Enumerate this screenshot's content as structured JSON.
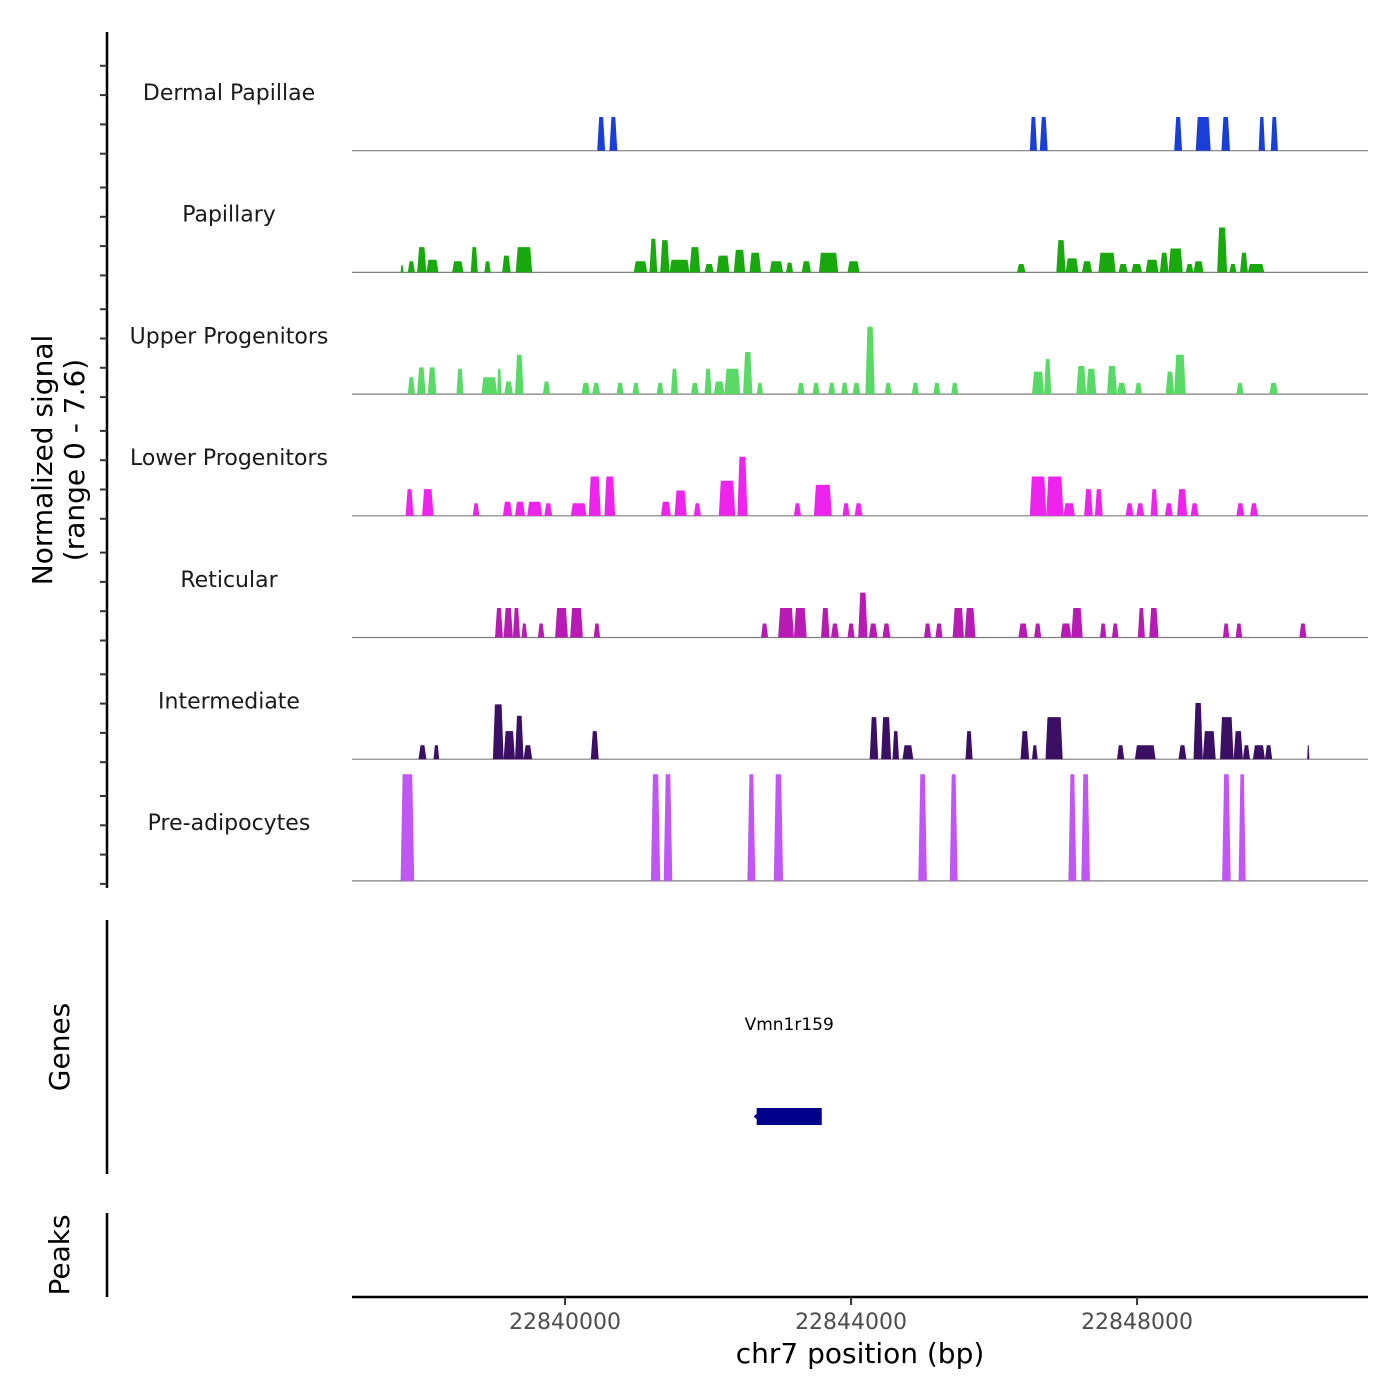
{
  "chart_data": {
    "type": "area",
    "title": "",
    "ylabel": "Normalized signal (range 0 - 7.6)",
    "ylabel_lines": [
      "Normalized signal",
      "(range 0 - 7.6)"
    ],
    "xlabel": "chr7 position (bp)",
    "chromosome": "chr7",
    "xlim": [
      22837020,
      22851230
    ],
    "ylim": [
      0,
      7.6
    ],
    "x_ticks": [
      22840000,
      22844000,
      22848000
    ],
    "x_tick_labels": [
      "22840000",
      "22844000",
      "22848000"
    ],
    "grid": false,
    "legend": "none",
    "tracks": [
      {
        "name": "Dermal Papillae",
        "color": "#1a3fd9",
        "regions": [
          [
            22840450,
            22840560,
            2.4
          ],
          [
            22840620,
            22840730,
            2.4
          ],
          [
            22846500,
            22846600,
            2.4
          ],
          [
            22846640,
            22846750,
            2.4
          ],
          [
            22848520,
            22848630,
            2.4
          ],
          [
            22848820,
            22849030,
            2.4
          ],
          [
            22849180,
            22849300,
            2.4
          ],
          [
            22849700,
            22849790,
            2.4
          ],
          [
            22849870,
            22849970,
            2.4
          ]
        ]
      },
      {
        "name": "Papillary",
        "color": "#1aa80f",
        "regions": [
          [
            22837700,
            22837740,
            0.5
          ],
          [
            22837800,
            22837900,
            0.8
          ],
          [
            22837930,
            22838060,
            1.8
          ],
          [
            22838060,
            22838230,
            0.9
          ],
          [
            22838420,
            22838580,
            0.8
          ],
          [
            22838680,
            22838780,
            1.8
          ],
          [
            22838870,
            22838960,
            0.8
          ],
          [
            22839120,
            22839240,
            1.2
          ],
          [
            22839310,
            22839540,
            1.8
          ],
          [
            22840960,
            22841150,
            0.8
          ],
          [
            22841180,
            22841290,
            2.4
          ],
          [
            22841330,
            22841460,
            2.3
          ],
          [
            22841460,
            22841740,
            0.9
          ],
          [
            22841740,
            22841890,
            1.8
          ],
          [
            22841950,
            22842080,
            0.6
          ],
          [
            22842120,
            22842300,
            1.2
          ],
          [
            22842360,
            22842520,
            1.6
          ],
          [
            22842580,
            22842740,
            1.4
          ],
          [
            22842860,
            22843050,
            0.8
          ],
          [
            22843090,
            22843190,
            0.7
          ],
          [
            22843310,
            22843440,
            0.8
          ],
          [
            22843550,
            22843820,
            1.4
          ],
          [
            22843950,
            22844120,
            0.8
          ],
          [
            22846320,
            22846440,
            0.6
          ],
          [
            22846870,
            22847000,
            2.3
          ],
          [
            22847000,
            22847180,
            1.0
          ],
          [
            22847230,
            22847370,
            0.8
          ],
          [
            22847460,
            22847700,
            1.4
          ],
          [
            22847740,
            22847870,
            0.6
          ],
          [
            22847920,
            22848070,
            0.6
          ],
          [
            22848120,
            22848300,
            0.9
          ],
          [
            22848320,
            22848440,
            1.4
          ],
          [
            22848440,
            22848640,
            1.7
          ],
          [
            22848680,
            22848790,
            0.6
          ],
          [
            22848790,
            22848930,
            0.8
          ],
          [
            22849120,
            22849260,
            3.2
          ],
          [
            22849290,
            22849390,
            0.6
          ],
          [
            22849440,
            22849550,
            1.4
          ],
          [
            22849550,
            22849780,
            0.6
          ]
        ]
      },
      {
        "name": "Upper Progenitors",
        "color": "#59d966",
        "regions": [
          [
            22837800,
            22837900,
            1.2
          ],
          [
            22837930,
            22838050,
            1.9
          ],
          [
            22838080,
            22838200,
            1.9
          ],
          [
            22838480,
            22838580,
            1.8
          ],
          [
            22838830,
            22839050,
            1.2
          ],
          [
            22839050,
            22839110,
            1.8
          ],
          [
            22839150,
            22839270,
            0.9
          ],
          [
            22839300,
            22839420,
            2.8
          ],
          [
            22839690,
            22839790,
            0.9
          ],
          [
            22840230,
            22840350,
            0.8
          ],
          [
            22840380,
            22840490,
            0.8
          ],
          [
            22840720,
            22840820,
            0.8
          ],
          [
            22840940,
            22841040,
            0.8
          ],
          [
            22841280,
            22841380,
            0.8
          ],
          [
            22841480,
            22841580,
            1.8
          ],
          [
            22841760,
            22841870,
            0.8
          ],
          [
            22841950,
            22842050,
            1.8
          ],
          [
            22842080,
            22842230,
            0.9
          ],
          [
            22842230,
            22842450,
            1.8
          ],
          [
            22842490,
            22842620,
            3.0
          ],
          [
            22842680,
            22842770,
            0.8
          ],
          [
            22843250,
            22843350,
            0.8
          ],
          [
            22843460,
            22843560,
            0.8
          ],
          [
            22843680,
            22843780,
            0.8
          ],
          [
            22843860,
            22843960,
            0.8
          ],
          [
            22844020,
            22844130,
            0.8
          ],
          [
            22844200,
            22844330,
            4.8
          ],
          [
            22844470,
            22844570,
            0.8
          ],
          [
            22844850,
            22844950,
            0.8
          ],
          [
            22845150,
            22845250,
            0.8
          ],
          [
            22845400,
            22845500,
            0.8
          ],
          [
            22846530,
            22846700,
            1.6
          ],
          [
            22846700,
            22846800,
            2.5
          ],
          [
            22847150,
            22847290,
            2.0
          ],
          [
            22847290,
            22847430,
            1.8
          ],
          [
            22847580,
            22847720,
            2.0
          ],
          [
            22847720,
            22847850,
            0.8
          ],
          [
            22847970,
            22848070,
            0.8
          ],
          [
            22848400,
            22848520,
            1.6
          ],
          [
            22848520,
            22848680,
            2.8
          ],
          [
            22849390,
            22849490,
            0.8
          ],
          [
            22849850,
            22849970,
            0.8
          ]
        ]
      },
      {
        "name": "Lower Progenitors",
        "color": "#ee23ee",
        "regions": [
          [
            22837770,
            22837880,
            1.9
          ],
          [
            22838000,
            22838160,
            1.9
          ],
          [
            22838710,
            22838800,
            0.9
          ],
          [
            22839130,
            22839260,
            1.0
          ],
          [
            22839300,
            22839440,
            1.0
          ],
          [
            22839470,
            22839680,
            1.0
          ],
          [
            22839710,
            22839820,
            0.9
          ],
          [
            22840080,
            22840300,
            0.9
          ],
          [
            22840330,
            22840500,
            2.8
          ],
          [
            22840550,
            22840700,
            2.8
          ],
          [
            22841340,
            22841480,
            1.0
          ],
          [
            22841530,
            22841700,
            1.8
          ],
          [
            22841800,
            22841900,
            0.9
          ],
          [
            22842150,
            22842380,
            2.5
          ],
          [
            22842410,
            22842550,
            4.2
          ],
          [
            22843200,
            22843300,
            0.9
          ],
          [
            22843480,
            22843730,
            2.2
          ],
          [
            22843880,
            22843980,
            0.9
          ],
          [
            22844050,
            22844160,
            0.9
          ],
          [
            22846500,
            22846730,
            2.8
          ],
          [
            22846730,
            22846970,
            2.8
          ],
          [
            22846970,
            22847130,
            0.9
          ],
          [
            22847260,
            22847380,
            1.9
          ],
          [
            22847410,
            22847520,
            1.9
          ],
          [
            22847840,
            22847950,
            0.9
          ],
          [
            22847990,
            22848100,
            0.9
          ],
          [
            22848190,
            22848290,
            1.9
          ],
          [
            22848390,
            22848500,
            0.9
          ],
          [
            22848560,
            22848700,
            1.9
          ],
          [
            22848750,
            22848860,
            0.9
          ],
          [
            22849390,
            22849500,
            0.9
          ],
          [
            22849580,
            22849690,
            0.9
          ]
        ]
      },
      {
        "name": "Reticular",
        "color": "#b81bb3",
        "regions": [
          [
            22839020,
            22839130,
            2.1
          ],
          [
            22839140,
            22839270,
            2.1
          ],
          [
            22839270,
            22839370,
            2.1
          ],
          [
            22839390,
            22839470,
            1.0
          ],
          [
            22839620,
            22839710,
            1.0
          ],
          [
            22839860,
            22840040,
            2.1
          ],
          [
            22840070,
            22840250,
            2.1
          ],
          [
            22840400,
            22840490,
            1.0
          ],
          [
            22842740,
            22842840,
            1.0
          ],
          [
            22842980,
            22843200,
            2.1
          ],
          [
            22843200,
            22843380,
            2.1
          ],
          [
            22843580,
            22843700,
            2.1
          ],
          [
            22843720,
            22843830,
            1.0
          ],
          [
            22843950,
            22844050,
            1.0
          ],
          [
            22844100,
            22844230,
            3.2
          ],
          [
            22844250,
            22844370,
            1.0
          ],
          [
            22844440,
            22844550,
            1.0
          ],
          [
            22845020,
            22845120,
            1.0
          ],
          [
            22845180,
            22845280,
            1.0
          ],
          [
            22845420,
            22845580,
            2.1
          ],
          [
            22845590,
            22845740,
            2.1
          ],
          [
            22846340,
            22846470,
            1.0
          ],
          [
            22846560,
            22846660,
            1.0
          ],
          [
            22846930,
            22847080,
            1.0
          ],
          [
            22847080,
            22847240,
            2.1
          ],
          [
            22847480,
            22847570,
            1.0
          ],
          [
            22847650,
            22847740,
            1.0
          ],
          [
            22848010,
            22848110,
            2.1
          ],
          [
            22848170,
            22848300,
            2.1
          ],
          [
            22849200,
            22849290,
            1.0
          ],
          [
            22849380,
            22849470,
            1.0
          ],
          [
            22850270,
            22850370,
            1.0
          ]
        ]
      },
      {
        "name": "Intermediate",
        "color": "#3b0f63",
        "regions": [
          [
            22837950,
            22838060,
            1.0
          ],
          [
            22838160,
            22838240,
            1.0
          ],
          [
            22838990,
            22839140,
            3.9
          ],
          [
            22839140,
            22839300,
            2.0
          ],
          [
            22839300,
            22839420,
            3.1
          ],
          [
            22839420,
            22839540,
            1.0
          ],
          [
            22840360,
            22840470,
            2.0
          ],
          [
            22844260,
            22844380,
            3.0
          ],
          [
            22844420,
            22844560,
            3.0
          ],
          [
            22844580,
            22844670,
            2.0
          ],
          [
            22844720,
            22844870,
            1.0
          ],
          [
            22845600,
            22845700,
            2.0
          ],
          [
            22846370,
            22846490,
            2.0
          ],
          [
            22846530,
            22846610,
            1.0
          ],
          [
            22846720,
            22846960,
            3.0
          ],
          [
            22847720,
            22847820,
            1.0
          ],
          [
            22847970,
            22848260,
            1.0
          ],
          [
            22848580,
            22848690,
            1.0
          ],
          [
            22848790,
            22848920,
            4.0
          ],
          [
            22848920,
            22849100,
            2.0
          ],
          [
            22849160,
            22849350,
            3.0
          ],
          [
            22849350,
            22849480,
            2.0
          ],
          [
            22849480,
            22849580,
            1.0
          ],
          [
            22849620,
            22849790,
            1.0
          ],
          [
            22849790,
            22849890,
            1.0
          ],
          [
            22850380,
            22850410,
            1.0
          ]
        ]
      },
      {
        "name": "Pre-adipocytes",
        "color": "#c057f5",
        "regions": [
          [
            22837700,
            22837890,
            7.6
          ],
          [
            22841200,
            22841330,
            7.6
          ],
          [
            22841380,
            22841500,
            7.6
          ],
          [
            22842550,
            22842660,
            7.6
          ],
          [
            22842920,
            22843050,
            7.6
          ],
          [
            22844940,
            22845060,
            7.6
          ],
          [
            22845380,
            22845490,
            7.6
          ],
          [
            22847040,
            22847150,
            7.6
          ],
          [
            22847220,
            22847340,
            7.6
          ],
          [
            22849190,
            22849310,
            7.6
          ],
          [
            22849420,
            22849520,
            7.6
          ]
        ]
      }
    ],
    "genes": {
      "title": "Genes",
      "items": [
        {
          "name": "Vmn1r159",
          "start": 22842680,
          "end": 22843590,
          "strand": "-",
          "color": "#00008b"
        }
      ]
    },
    "peaks": {
      "title": "Peaks",
      "items": []
    }
  }
}
